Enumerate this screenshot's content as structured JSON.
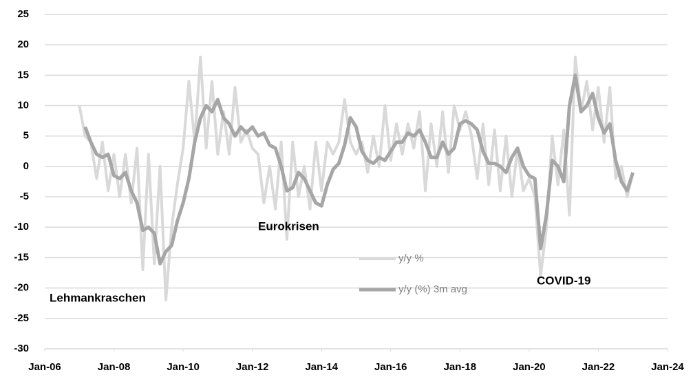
{
  "chart_data": {
    "type": "line",
    "x": [
      "2007-01",
      "2007-03",
      "2007-05",
      "2007-07",
      "2007-09",
      "2007-11",
      "2008-01",
      "2008-03",
      "2008-05",
      "2008-07",
      "2008-09",
      "2008-11",
      "2009-01",
      "2009-03",
      "2009-05",
      "2009-07",
      "2009-09",
      "2009-11",
      "2010-01",
      "2010-03",
      "2010-05",
      "2010-07",
      "2010-09",
      "2010-11",
      "2011-01",
      "2011-03",
      "2011-05",
      "2011-07",
      "2011-09",
      "2011-11",
      "2012-01",
      "2012-03",
      "2012-05",
      "2012-07",
      "2012-09",
      "2012-11",
      "2013-01",
      "2013-03",
      "2013-05",
      "2013-07",
      "2013-09",
      "2013-11",
      "2014-01",
      "2014-03",
      "2014-05",
      "2014-07",
      "2014-09",
      "2014-11",
      "2015-01",
      "2015-03",
      "2015-05",
      "2015-07",
      "2015-09",
      "2015-11",
      "2016-01",
      "2016-03",
      "2016-05",
      "2016-07",
      "2016-09",
      "2016-11",
      "2017-01",
      "2017-03",
      "2017-05",
      "2017-07",
      "2017-09",
      "2017-11",
      "2018-01",
      "2018-03",
      "2018-05",
      "2018-07",
      "2018-09",
      "2018-11",
      "2019-01",
      "2019-03",
      "2019-05",
      "2019-07",
      "2019-09",
      "2019-11",
      "2020-01",
      "2020-03",
      "2020-05",
      "2020-07",
      "2020-09",
      "2020-11",
      "2021-01",
      "2021-03",
      "2021-05",
      "2021-07",
      "2021-09",
      "2021-11",
      "2022-01",
      "2022-03",
      "2022-05",
      "2022-07",
      "2022-09",
      "2022-11",
      "2023-01"
    ],
    "series": [
      {
        "name": "y/y %",
        "color": "#d9d9d9",
        "width": 4,
        "values": [
          10,
          5,
          4,
          -2,
          4,
          -4,
          2,
          -5,
          2,
          -6,
          3,
          -17,
          2,
          -16,
          0,
          -22,
          -10,
          -3,
          3,
          14,
          4,
          18,
          3,
          14,
          2,
          9,
          2,
          13,
          4,
          6,
          3,
          2,
          -6,
          0,
          -7,
          4,
          -12,
          4,
          -5,
          0,
          -7,
          4,
          -4,
          4,
          2,
          4,
          11,
          4,
          2,
          4,
          -1,
          5,
          0,
          10,
          1,
          7,
          2,
          7,
          3,
          9,
          -4,
          7,
          0,
          9,
          -1,
          10,
          6,
          9,
          5,
          -2,
          7,
          -3,
          6,
          -4,
          5,
          -5,
          3,
          -4,
          -2,
          -5,
          -18,
          -10,
          5,
          -3,
          6,
          -8,
          18,
          9,
          14,
          6,
          13,
          4,
          13,
          -2,
          0,
          -5,
          -1
        ]
      },
      {
        "name": "y/y (%) 3m avg",
        "color": "#a6a6a6",
        "width": 5,
        "values": [
          null,
          6.5,
          4,
          2,
          1.5,
          2,
          -1.5,
          -2,
          -1,
          -4,
          -6,
          -10.5,
          -10,
          -11,
          -16,
          -14,
          -13,
          -9,
          -6,
          -2,
          4,
          8,
          10,
          9,
          11,
          8,
          7,
          5,
          6.5,
          5.5,
          6.5,
          5,
          5.5,
          3.5,
          3,
          0,
          -4,
          -3.5,
          -1,
          -2,
          -4,
          -6,
          -6.5,
          -3,
          -0.5,
          0.5,
          3.5,
          8,
          6.5,
          2.5,
          1,
          0.5,
          1.5,
          1,
          2.5,
          4,
          4,
          5.5,
          5,
          6,
          4,
          1.5,
          1.5,
          4,
          2,
          3,
          7,
          7.5,
          7,
          6,
          2.5,
          0.5,
          0.5,
          0,
          -1,
          1.5,
          3,
          0,
          -1.5,
          -2,
          -13.5,
          -8,
          1,
          0,
          -2.5,
          10,
          15,
          9,
          10,
          12,
          8,
          5.5,
          7,
          1,
          -2.5,
          -4,
          -1
        ]
      }
    ],
    "xlim": [
      "2006-01",
      "2024-01"
    ],
    "xticks": [
      {
        "value": "2006-01",
        "label": "Jan-06"
      },
      {
        "value": "2008-01",
        "label": "Jan-08"
      },
      {
        "value": "2010-01",
        "label": "Jan-10"
      },
      {
        "value": "2012-01",
        "label": "Jan-12"
      },
      {
        "value": "2014-01",
        "label": "Jan-14"
      },
      {
        "value": "2016-01",
        "label": "Jan-16"
      },
      {
        "value": "2018-01",
        "label": "Jan-18"
      },
      {
        "value": "2020-01",
        "label": "Jan-20"
      },
      {
        "value": "2022-01",
        "label": "Jan-22"
      },
      {
        "value": "2024-01",
        "label": "Jan-24"
      }
    ],
    "ylim": [
      -30,
      25
    ],
    "yticks": [
      25,
      20,
      15,
      10,
      5,
      0,
      -5,
      -10,
      -15,
      -20,
      -25,
      -30
    ],
    "grid": true,
    "annotations": [
      "Lehmankraschen",
      "Eurokrisen",
      "COVID-19"
    ]
  }
}
